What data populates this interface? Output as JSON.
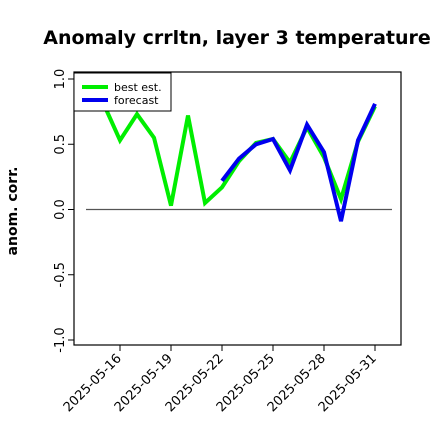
{
  "colors": {
    "best": "#00ee00",
    "forecast": "#0000ee",
    "highlight_tick": "#1a8a1a",
    "zero_line": "#555555"
  },
  "chart_data": {
    "type": "line",
    "title": "Anomaly crrltn, layer 3 temperature",
    "ylabel": "anom. corr.",
    "xlabel": "",
    "ylim": [
      -1.0,
      1.0
    ],
    "xlim": [
      "2025-05-14",
      "2025-06-01"
    ],
    "yticks": [
      "-1.0",
      "-0.5",
      "0.0",
      "0.5",
      "1.0"
    ],
    "xticks": [
      "2025-05-16",
      "2025-05-19",
      "2025-05-22",
      "2025-05-25",
      "2025-05-28",
      "2025-05-31"
    ],
    "highlight_xtick": "2025-05-22",
    "zero_line": 0,
    "grid": false,
    "legend": "top-left",
    "series": [
      {
        "name": "best est.",
        "color_key": "best",
        "x": [
          "2025-05-15",
          "2025-05-16",
          "2025-05-17",
          "2025-05-18",
          "2025-05-19",
          "2025-05-20",
          "2025-05-21",
          "2025-05-22",
          "2025-05-23",
          "2025-05-24",
          "2025-05-25",
          "2025-05-26",
          "2025-05-27",
          "2025-05-28",
          "2025-05-29",
          "2025-05-30",
          "2025-05-31"
        ],
        "values": [
          0.82,
          0.53,
          0.73,
          0.55,
          0.03,
          0.72,
          0.05,
          0.17,
          0.37,
          0.51,
          0.54,
          0.36,
          0.63,
          0.4,
          0.08,
          0.52,
          0.79
        ]
      },
      {
        "name": "forecast",
        "color_key": "forecast",
        "x": [
          "2025-05-22",
          "2025-05-23",
          "2025-05-24",
          "2025-05-25",
          "2025-05-26",
          "2025-05-27",
          "2025-05-28",
          "2025-05-29",
          "2025-05-30",
          "2025-05-31"
        ],
        "values": [
          0.22,
          0.39,
          0.5,
          0.54,
          0.3,
          0.65,
          0.44,
          -0.09,
          0.53,
          0.81
        ]
      }
    ]
  }
}
